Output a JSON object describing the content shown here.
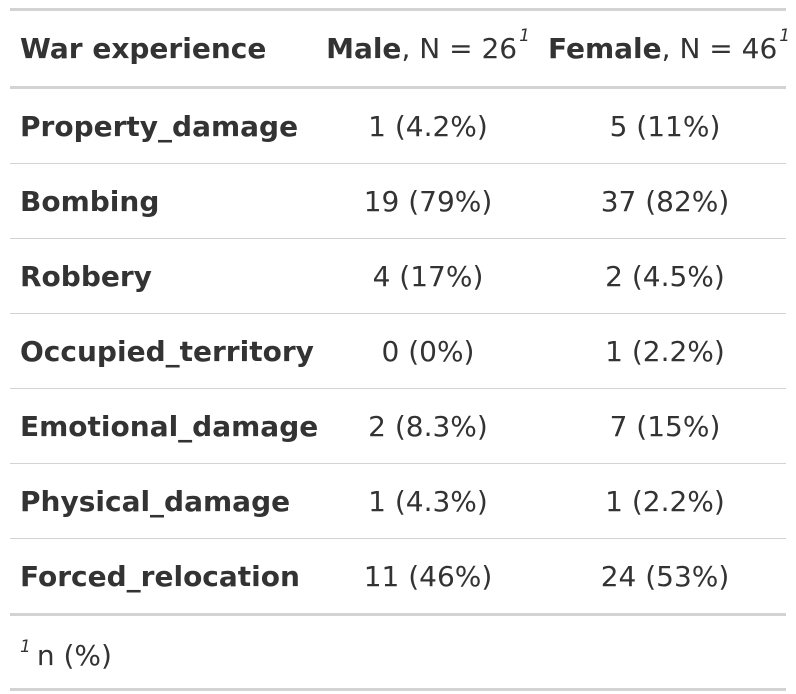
{
  "table": {
    "header": {
      "label": "War experience",
      "groups": [
        {
          "name": "Male",
          "n_text": ", N = 26",
          "footnote_mark": "1"
        },
        {
          "name": "Female",
          "n_text": ", N = 46",
          "footnote_mark": "1"
        }
      ]
    },
    "rows": [
      {
        "label": "Property_damage",
        "male": "1 (4.2%)",
        "female": "5 (11%)"
      },
      {
        "label": "Bombing",
        "male": "19 (79%)",
        "female": "37 (82%)"
      },
      {
        "label": "Robbery",
        "male": "4 (17%)",
        "female": "2 (4.5%)"
      },
      {
        "label": "Occupied_territory",
        "male": "0 (0%)",
        "female": "1 (2.2%)"
      },
      {
        "label": "Emotional_damage",
        "male": "2 (8.3%)",
        "female": "7 (15%)"
      },
      {
        "label": "Physical_damage",
        "male": "1 (4.3%)",
        "female": "1 (2.2%)"
      },
      {
        "label": "Forced_relocation",
        "male": "11 (46%)",
        "female": "24 (53%)"
      }
    ],
    "footnote": {
      "mark": "1",
      "text": "n (%)"
    }
  }
}
